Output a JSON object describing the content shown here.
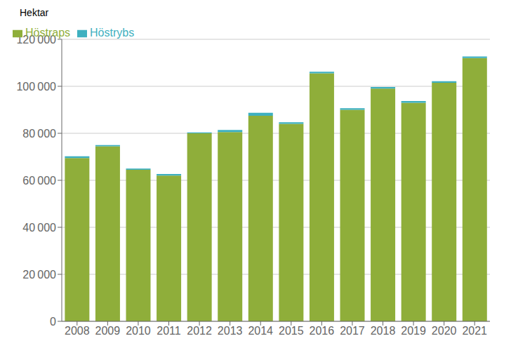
{
  "chart_data": {
    "type": "bar",
    "stacked": true,
    "ylabel": "Hektar",
    "categories": [
      "2008",
      "2009",
      "2010",
      "2011",
      "2012",
      "2013",
      "2014",
      "2015",
      "2016",
      "2017",
      "2018",
      "2019",
      "2020",
      "2021"
    ],
    "series": [
      {
        "name": "Höstraps",
        "color": "#8fae3a",
        "values": [
          69500,
          74500,
          64500,
          62000,
          80000,
          80500,
          87500,
          84000,
          105500,
          90000,
          99000,
          93000,
          101500,
          112000
        ]
      },
      {
        "name": "Höstrybs",
        "color": "#3eb0c0",
        "values": [
          700,
          500,
          500,
          700,
          400,
          900,
          1200,
          700,
          700,
          700,
          700,
          700,
          700,
          700
        ]
      }
    ],
    "ylim": [
      0,
      120000
    ],
    "yticks": [
      0,
      {
        "value": 20000,
        "label": "20 000"
      },
      {
        "value": 40000,
        "label": "40 000"
      },
      {
        "value": 60000,
        "label": "60 000"
      },
      {
        "value": 80000,
        "label": "80 000"
      },
      {
        "value": 100000,
        "label": "100 000"
      },
      {
        "value": 120000,
        "label": "120 000"
      }
    ],
    "grid": true,
    "legend": "upper left"
  }
}
